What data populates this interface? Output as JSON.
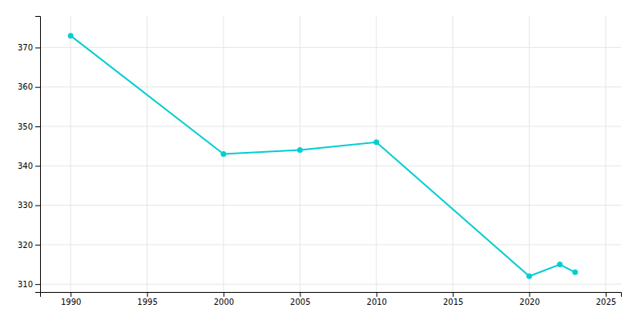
{
  "chart_data": {
    "type": "line",
    "x": [
      1990,
      2000,
      2005,
      2010,
      2020,
      2022,
      2023
    ],
    "values": [
      373,
      343,
      344,
      346,
      312,
      315,
      313
    ],
    "color": "#00CED1",
    "marker": "circle",
    "xlim": [
      1988,
      2026
    ],
    "ylim": [
      308,
      378
    ],
    "xticks": [
      1990,
      1995,
      2000,
      2005,
      2010,
      2015,
      2020,
      2025
    ],
    "yticks": [
      310,
      320,
      330,
      340,
      350,
      360,
      370
    ],
    "grid": true
  }
}
